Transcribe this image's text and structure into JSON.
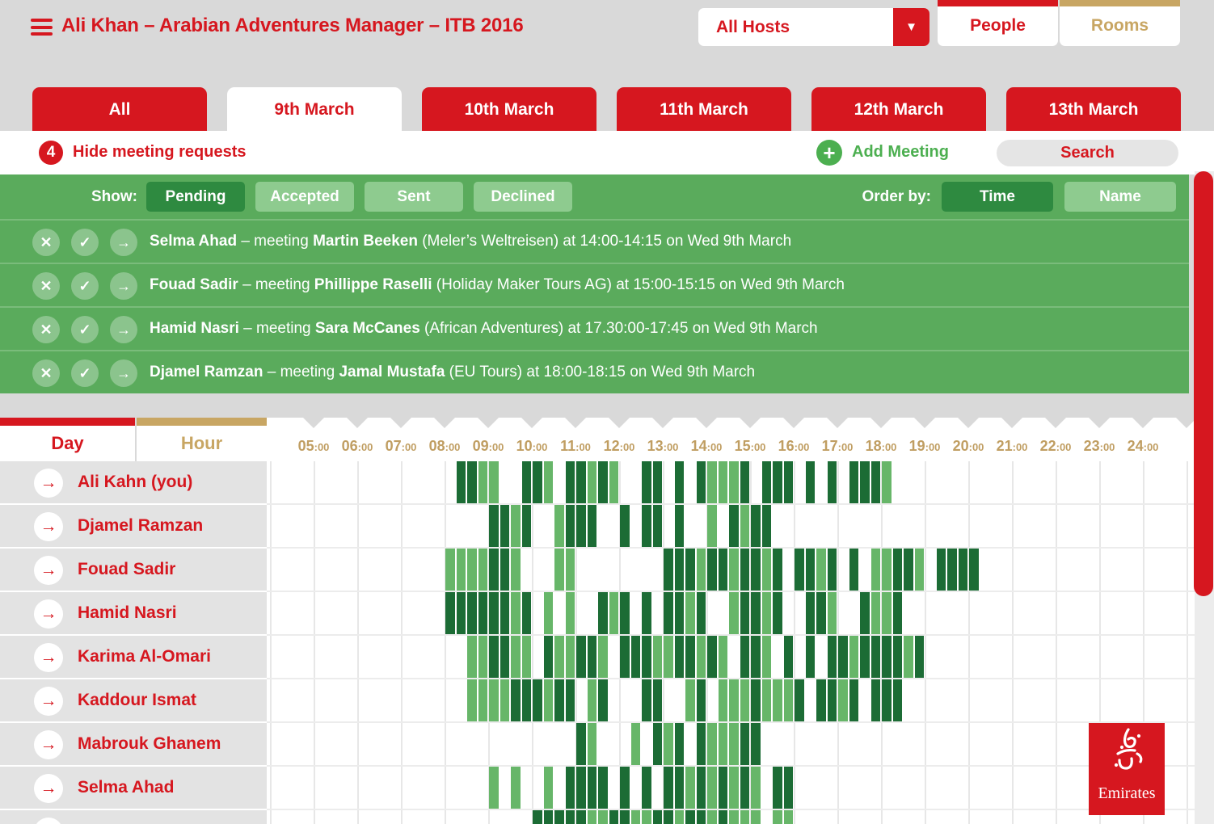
{
  "header": {
    "title": "Ali Khan – Arabian Adventures Manager – ITB 2016",
    "hosts_dropdown": {
      "value": "All Hosts"
    },
    "view_tabs": [
      {
        "label": "People",
        "accent": "#d6171f",
        "active": true
      },
      {
        "label": "Rooms",
        "accent": "#c8a663",
        "active": false
      }
    ]
  },
  "date_tabs": [
    {
      "label": "All",
      "active": false
    },
    {
      "label": "9th March",
      "active": true
    },
    {
      "label": "10th March",
      "active": false
    },
    {
      "label": "11th March",
      "active": false
    },
    {
      "label": "12th March",
      "active": false
    },
    {
      "label": "13th March",
      "active": false
    }
  ],
  "requests_bar": {
    "count": "4",
    "hide_label": "Hide meeting requests",
    "add_meeting_label": "Add Meeting",
    "search_label": "Search"
  },
  "filters": {
    "show_label": "Show:",
    "status_options": [
      {
        "label": "Pending",
        "active": true
      },
      {
        "label": "Accepted",
        "active": false
      },
      {
        "label": "Sent",
        "active": false
      },
      {
        "label": "Declined",
        "active": false
      }
    ],
    "order_label": "Order by:",
    "order_options": [
      {
        "label": "Time",
        "active": true
      },
      {
        "label": "Name",
        "active": false
      }
    ]
  },
  "request_actions": [
    {
      "name": "decline-request-button",
      "glyph": "✕"
    },
    {
      "name": "accept-request-button",
      "glyph": "✓"
    },
    {
      "name": "forward-request-button",
      "glyph": "→"
    }
  ],
  "meeting_requests": [
    {
      "host": "Selma Ahad",
      "connector": "– meeting",
      "guest": "Martin Beeken",
      "details": "(Meler’s Weltreisen) at 14:00-14:15 on Wed 9th March"
    },
    {
      "host": "Fouad Sadir",
      "connector": "– meeting",
      "guest": "Phillippe Raselli",
      "details": "(Holiday Maker Tours AG) at 15:00-15:15 on Wed 9th March"
    },
    {
      "host": "Hamid Nasri",
      "connector": "– meeting",
      "guest": "Sara McCanes",
      "details": "(African Adventures) at 17.30:00-17:45 on Wed 9th March"
    },
    {
      "host": "Djamel Ramzan",
      "connector": "– meeting",
      "guest": "Jamal Mustafa",
      "details": "(EU Tours) at 18:00-18:15 on Wed 9th March"
    }
  ],
  "timeline": {
    "day_tab": "Day",
    "hour_tab": "Hour",
    "hours": [
      "05:00",
      "06:00",
      "07:00",
      "08:00",
      "09:00",
      "10:00",
      "11:00",
      "12:00",
      "13:00",
      "14:00",
      "15:00",
      "16:00",
      "17:00",
      "18:00",
      "19:00",
      "20:00",
      "21:00",
      "22:00",
      "23:00",
      "24:00"
    ]
  },
  "icons": {
    "dropdown_caret": "▼",
    "add_plus": "+",
    "person_arrow": "→"
  },
  "schedule": {
    "slot_minutes": 15,
    "colors": {
      "dark": "#1c6c35",
      "light": "#67b669"
    },
    "people": [
      {
        "name": "Ali Kahn (you)",
        "segments": [
          [
            3.25,
            2,
            "d"
          ],
          [
            3.75,
            2,
            "l"
          ],
          [
            4.75,
            2,
            "d"
          ],
          [
            5.25,
            1,
            "l"
          ],
          [
            5.75,
            2,
            "d"
          ],
          [
            6.25,
            1,
            "l"
          ],
          [
            6.5,
            1,
            "d"
          ],
          [
            6.75,
            1,
            "l"
          ],
          [
            7.5,
            2,
            "d"
          ],
          [
            8.25,
            1,
            "d"
          ],
          [
            8.75,
            1,
            "d"
          ],
          [
            9.0,
            3,
            "l"
          ],
          [
            9.75,
            1,
            "d"
          ],
          [
            10.25,
            2,
            "d"
          ],
          [
            10.75,
            1,
            "d"
          ],
          [
            11.25,
            1,
            "d"
          ],
          [
            11.75,
            1,
            "d"
          ],
          [
            12.25,
            3,
            "d"
          ],
          [
            13.0,
            1,
            "l"
          ]
        ]
      },
      {
        "name": "Djamel Ramzan",
        "segments": [
          [
            4.0,
            2,
            "d"
          ],
          [
            4.5,
            1,
            "l"
          ],
          [
            4.75,
            1,
            "d"
          ],
          [
            5.5,
            1,
            "l"
          ],
          [
            5.75,
            2,
            "d"
          ],
          [
            6.25,
            1,
            "d"
          ],
          [
            7.0,
            1,
            "d"
          ],
          [
            7.5,
            1,
            "d"
          ],
          [
            7.75,
            1,
            "d"
          ],
          [
            8.25,
            1,
            "d"
          ],
          [
            9.0,
            1,
            "l"
          ],
          [
            9.5,
            1,
            "d"
          ],
          [
            9.75,
            1,
            "l"
          ],
          [
            10.0,
            2,
            "d"
          ]
        ]
      },
      {
        "name": "Fouad Sadir",
        "segments": [
          [
            3.0,
            4,
            "l"
          ],
          [
            4.0,
            2,
            "d"
          ],
          [
            4.5,
            1,
            "l"
          ],
          [
            5.5,
            2,
            "l"
          ],
          [
            8.0,
            3,
            "d"
          ],
          [
            8.75,
            1,
            "l"
          ],
          [
            9.0,
            2,
            "d"
          ],
          [
            9.5,
            1,
            "l"
          ],
          [
            9.75,
            2,
            "d"
          ],
          [
            10.25,
            1,
            "l"
          ],
          [
            10.5,
            1,
            "d"
          ],
          [
            11.0,
            2,
            "d"
          ],
          [
            11.5,
            1,
            "l"
          ],
          [
            11.75,
            1,
            "d"
          ],
          [
            12.25,
            1,
            "d"
          ],
          [
            12.75,
            2,
            "l"
          ],
          [
            13.25,
            2,
            "d"
          ],
          [
            13.75,
            1,
            "l"
          ],
          [
            14.25,
            4,
            "d"
          ]
        ]
      },
      {
        "name": "Hamid Nasri",
        "segments": [
          [
            3.0,
            2,
            "d"
          ],
          [
            3.5,
            1,
            "d"
          ],
          [
            3.75,
            1,
            "d"
          ],
          [
            4.0,
            2,
            "d"
          ],
          [
            4.5,
            1,
            "l"
          ],
          [
            4.75,
            1,
            "d"
          ],
          [
            5.25,
            1,
            "l"
          ],
          [
            5.75,
            1,
            "l"
          ],
          [
            6.5,
            1,
            "d"
          ],
          [
            6.75,
            1,
            "l"
          ],
          [
            7.0,
            1,
            "d"
          ],
          [
            7.5,
            1,
            "d"
          ],
          [
            8.0,
            2,
            "d"
          ],
          [
            8.5,
            1,
            "l"
          ],
          [
            8.75,
            1,
            "d"
          ],
          [
            9.5,
            1,
            "l"
          ],
          [
            9.75,
            2,
            "d"
          ],
          [
            10.25,
            1,
            "l"
          ],
          [
            10.5,
            1,
            "d"
          ],
          [
            11.25,
            2,
            "d"
          ],
          [
            11.75,
            1,
            "l"
          ],
          [
            12.5,
            1,
            "d"
          ],
          [
            12.75,
            2,
            "l"
          ],
          [
            13.25,
            1,
            "d"
          ]
        ]
      },
      {
        "name": "Karima Al-Omari",
        "segments": [
          [
            3.5,
            2,
            "l"
          ],
          [
            4.0,
            2,
            "d"
          ],
          [
            4.5,
            2,
            "l"
          ],
          [
            5.25,
            1,
            "d"
          ],
          [
            5.5,
            2,
            "l"
          ],
          [
            6.0,
            2,
            "d"
          ],
          [
            6.5,
            1,
            "l"
          ],
          [
            7.0,
            3,
            "d"
          ],
          [
            7.75,
            2,
            "l"
          ],
          [
            8.25,
            2,
            "d"
          ],
          [
            8.75,
            1,
            "l"
          ],
          [
            9.0,
            1,
            "d"
          ],
          [
            9.25,
            1,
            "l"
          ],
          [
            9.75,
            2,
            "d"
          ],
          [
            10.25,
            1,
            "l"
          ],
          [
            10.75,
            1,
            "d"
          ],
          [
            11.25,
            1,
            "d"
          ],
          [
            11.75,
            2,
            "d"
          ],
          [
            12.25,
            1,
            "l"
          ],
          [
            12.5,
            2,
            "d"
          ],
          [
            13.0,
            2,
            "d"
          ],
          [
            13.5,
            1,
            "l"
          ],
          [
            13.75,
            1,
            "d"
          ]
        ]
      },
      {
        "name": "Kaddour Ismat",
        "segments": [
          [
            3.5,
            4,
            "l"
          ],
          [
            4.5,
            3,
            "d"
          ],
          [
            5.25,
            1,
            "l"
          ],
          [
            5.5,
            2,
            "d"
          ],
          [
            6.25,
            1,
            "l"
          ],
          [
            6.5,
            1,
            "d"
          ],
          [
            7.5,
            1,
            "d"
          ],
          [
            7.75,
            1,
            "d"
          ],
          [
            8.5,
            1,
            "l"
          ],
          [
            8.75,
            1,
            "d"
          ],
          [
            9.25,
            2,
            "l"
          ],
          [
            9.75,
            1,
            "l"
          ],
          [
            10.0,
            1,
            "d"
          ],
          [
            10.25,
            3,
            "l"
          ],
          [
            11.0,
            1,
            "d"
          ],
          [
            11.5,
            2,
            "d"
          ],
          [
            12.0,
            1,
            "l"
          ],
          [
            12.25,
            1,
            "d"
          ],
          [
            12.75,
            3,
            "d"
          ]
        ]
      },
      {
        "name": "Mabrouk Ghanem",
        "segments": [
          [
            6.0,
            1,
            "d"
          ],
          [
            6.25,
            1,
            "l"
          ],
          [
            7.25,
            1,
            "l"
          ],
          [
            7.75,
            1,
            "d"
          ],
          [
            8.0,
            1,
            "l"
          ],
          [
            8.25,
            1,
            "d"
          ],
          [
            8.75,
            1,
            "d"
          ],
          [
            9.0,
            3,
            "l"
          ],
          [
            9.75,
            2,
            "d"
          ]
        ]
      },
      {
        "name": "Selma Ahad",
        "segments": [
          [
            4.0,
            1,
            "l"
          ],
          [
            4.5,
            1,
            "l"
          ],
          [
            5.25,
            1,
            "l"
          ],
          [
            5.75,
            1,
            "d"
          ],
          [
            6.0,
            2,
            "d"
          ],
          [
            6.5,
            1,
            "d"
          ],
          [
            7.0,
            1,
            "d"
          ],
          [
            7.5,
            1,
            "d"
          ],
          [
            8.0,
            2,
            "d"
          ],
          [
            8.5,
            1,
            "l"
          ],
          [
            8.75,
            1,
            "d"
          ],
          [
            9.0,
            1,
            "l"
          ],
          [
            9.25,
            1,
            "d"
          ],
          [
            9.5,
            1,
            "l"
          ],
          [
            9.75,
            1,
            "d"
          ],
          [
            10.0,
            1,
            "l"
          ],
          [
            10.5,
            2,
            "d"
          ]
        ]
      },
      {
        "name": "",
        "segments": [
          [
            5.0,
            1,
            "d"
          ],
          [
            5.25,
            1,
            "d"
          ],
          [
            5.5,
            1,
            "d"
          ],
          [
            5.75,
            1,
            "d"
          ],
          [
            6.0,
            1,
            "d"
          ],
          [
            6.25,
            1,
            "l"
          ],
          [
            6.5,
            1,
            "l"
          ],
          [
            6.75,
            1,
            "d"
          ],
          [
            7.0,
            1,
            "d"
          ],
          [
            7.25,
            1,
            "l"
          ],
          [
            7.5,
            1,
            "l"
          ],
          [
            7.75,
            1,
            "d"
          ],
          [
            8.0,
            1,
            "d"
          ],
          [
            8.25,
            1,
            "l"
          ],
          [
            8.5,
            1,
            "d"
          ],
          [
            8.75,
            1,
            "d"
          ],
          [
            9.0,
            1,
            "l"
          ],
          [
            9.25,
            1,
            "d"
          ],
          [
            9.5,
            1,
            "l"
          ],
          [
            9.75,
            1,
            "l"
          ],
          [
            10.0,
            1,
            "l"
          ],
          [
            10.5,
            1,
            "l"
          ],
          [
            10.75,
            1,
            "l"
          ]
        ]
      }
    ]
  },
  "logo": {
    "brand": "Emirates"
  },
  "colors": {
    "accent_red": "#d6171f",
    "accent_tan": "#c8a663",
    "panel_green": "#5aab5c",
    "active_green": "#2e8a40",
    "inactive_green": "#8ecb8f",
    "bar_dark_green": "#1c6c35",
    "bar_light_green": "#67b669"
  }
}
